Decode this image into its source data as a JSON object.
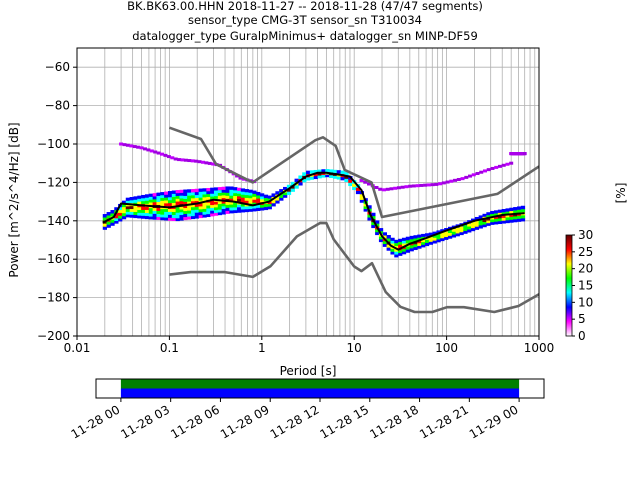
{
  "title": {
    "line1": "BK.BK63.00.HHN   2018-11-27 -- 2018-11-28  (47/47 segments)",
    "line2": "sensor_type CMG-3T sensor_sn T310034",
    "line3": "datalogger_type GuralpMinimus+ datalogger_sn MINP-DF59"
  },
  "chart_data": [
    {
      "type": "heatmap",
      "title": "",
      "xlabel": "Period [s]",
      "ylabel": "Power [m^2/s^4/Hz] [dB]",
      "xscale": "log",
      "xlim": [
        0.01,
        1000
      ],
      "ylim": [
        -200,
        -50
      ],
      "x_ticks": [
        0.01,
        0.1,
        1,
        10,
        100,
        1000
      ],
      "x_tick_labels": [
        "0.01",
        "0.1",
        "1",
        "10",
        "100",
        "1000"
      ],
      "y_ticks": [
        -200,
        -180,
        -160,
        -140,
        -120,
        -100,
        -80,
        -60
      ],
      "y_tick_labels": [
        "−200",
        "−180",
        "−160",
        "−140",
        "−120",
        "−100",
        "−80",
        "−60"
      ],
      "grid": true,
      "colorbar": {
        "label": "[%]",
        "range": [
          0,
          30
        ],
        "ticks": [
          0,
          5,
          10,
          15,
          20,
          25,
          30
        ],
        "tick_labels": [
          "0",
          "5",
          "10",
          "15",
          "20",
          "25",
          "30"
        ],
        "colors": [
          "#ffffff",
          "#ff00ff",
          "#0000ff",
          "#00ffff",
          "#00ff00",
          "#ffff00",
          "#ff0000",
          "#600000"
        ]
      },
      "series": [
        {
          "color": "#000000",
          "x": [
            0.019,
            0.025,
            0.03,
            0.05,
            0.1,
            0.2,
            0.3,
            0.5,
            0.8,
            1.2,
            2,
            3,
            4,
            5,
            7,
            9,
            12,
            15,
            20,
            25,
            30,
            40,
            60,
            100,
            200,
            400,
            700
          ],
          "y": [
            -141,
            -138,
            -131,
            -132,
            -133,
            -131,
            -129,
            -130,
            -132,
            -130,
            -123,
            -117,
            -115,
            -115,
            -116,
            -117,
            -124,
            -137,
            -148,
            -153,
            -155,
            -152,
            -149,
            -145,
            -140,
            -137,
            -136
          ]
        },
        {
          "color": "#666666",
          "x": [
            0.1,
            0.22,
            0.32,
            0.8,
            3.8,
            4.6,
            6.3,
            7.9,
            15.4,
            20,
            354.8,
            1000
          ],
          "y": [
            -91.5,
            -97.4,
            -110.5,
            -120,
            -98,
            -96.5,
            -101,
            -113.5,
            -120,
            -138,
            -126,
            -111.7
          ]
        },
        {
          "color": "#666666",
          "x": [
            0.1,
            0.17,
            0.4,
            0.8,
            1.24,
            2.4,
            4.3,
            5,
            6,
            10,
            12,
            15.6,
            21.9,
            31.6,
            45,
            70,
            101,
            154,
            328,
            600,
            1000
          ],
          "y": [
            -168,
            -166.7,
            -166.7,
            -169.2,
            -163.7,
            -148.1,
            -141.1,
            -141.2,
            -149.7,
            -163.8,
            -166.2,
            -162.1,
            -177.1,
            -184.8,
            -187.5,
            -187.5,
            -185,
            -185,
            -187.5,
            -184.4,
            -178.3
          ]
        }
      ],
      "density_bands": [
        {
          "x": [
            0.019,
            0.025,
            0.035,
            0.06,
            0.12,
            0.25,
            0.45,
            0.8,
            1.2,
            2,
            3,
            5,
            8,
            11,
            15,
            20,
            28,
            40,
            70,
            150,
            300,
            700
          ],
          "lo": [
            -145,
            -142,
            -138,
            -139,
            -140,
            -138,
            -136,
            -135,
            -134,
            -126,
            -119,
            -117,
            -119,
            -126,
            -141,
            -152,
            -159,
            -156,
            -152,
            -147,
            -142,
            -140
          ],
          "hi": [
            -137,
            -134,
            -128,
            -126,
            -124,
            -123,
            -122,
            -124,
            -127,
            -121,
            -114,
            -113,
            -114,
            -121,
            -133,
            -145,
            -150,
            -148,
            -146,
            -141,
            -135,
            -132
          ]
        }
      ],
      "outlier_traces": [
        {
          "x": [
            0.03,
            0.05,
            0.08,
            0.12,
            0.2,
            0.35,
            0.6,
            0.9
          ],
          "y": [
            -100,
            -102,
            -105,
            -108,
            -109,
            -111,
            -118,
            -120
          ]
        },
        {
          "x": [
            12,
            20,
            40,
            80,
            150,
            300,
            500
          ],
          "y": [
            -119,
            -124,
            -122,
            -121,
            -118,
            -113,
            -110
          ]
        },
        {
          "x": [
            500,
            700
          ],
          "y": [
            -105,
            -105
          ]
        }
      ]
    },
    {
      "type": "bar",
      "title": "",
      "xlabel": "",
      "x_tick_labels": [
        "11-28 00",
        "11-28 03",
        "11-28 06",
        "11-28 09",
        "11-28 12",
        "11-28 15",
        "11-28 18",
        "11-28 21",
        "11-29 00"
      ],
      "x_range_hours": [
        -1.5,
        25.5
      ],
      "coverage": [
        {
          "name": "",
          "color": "#008000",
          "start_hour": 0,
          "end_hour": 24
        },
        {
          "name": "",
          "color": "#0000ff",
          "start_hour": 0,
          "end_hour": 24
        }
      ]
    }
  ]
}
